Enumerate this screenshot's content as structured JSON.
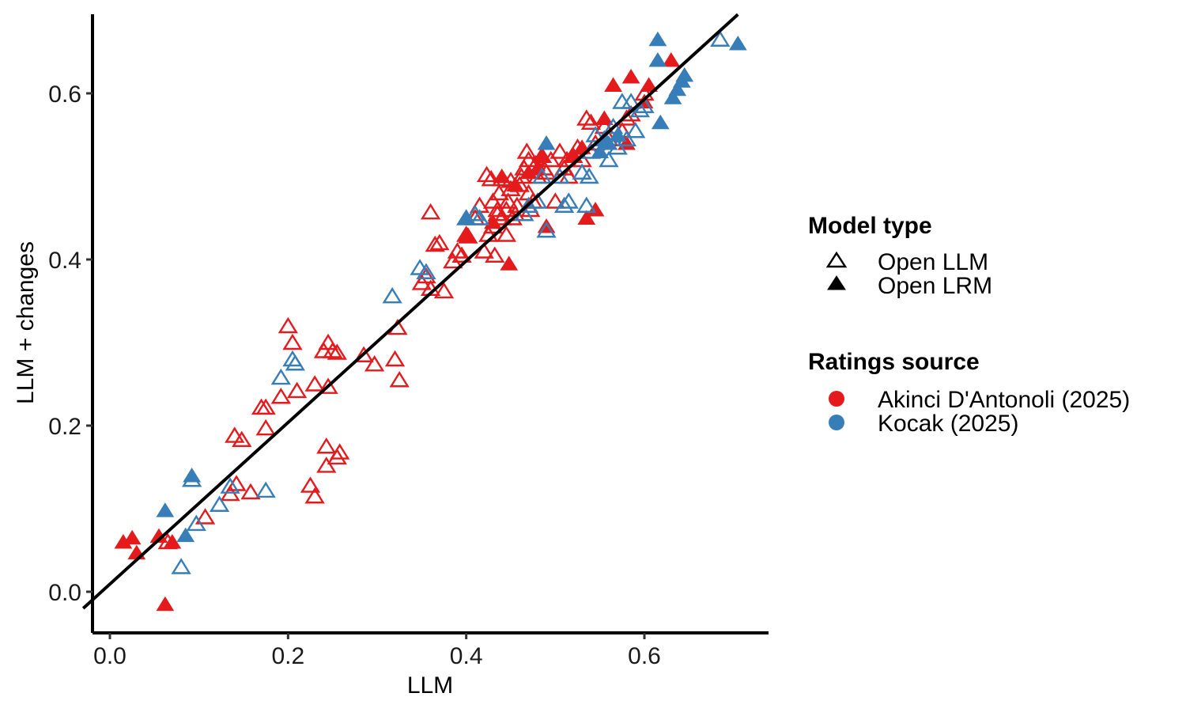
{
  "chart_data": {
    "type": "scatter",
    "xlabel": "LLM",
    "ylabel": "LLM + changes",
    "xlim": [
      -0.03,
      0.735
    ],
    "ylim": [
      -0.05,
      0.695
    ],
    "x_ticks": [
      0.0,
      0.2,
      0.4,
      0.6
    ],
    "y_ticks": [
      0.0,
      0.2,
      0.4,
      0.6
    ],
    "x_tick_labels": [
      "0.0",
      "0.2",
      "0.4",
      "0.6"
    ],
    "y_tick_labels": [
      "0.0",
      "0.2",
      "0.4",
      "0.6"
    ],
    "grid": false,
    "legend_position": "right",
    "reference_line": {
      "x": [
        -0.03,
        0.705
      ],
      "y": [
        -0.02,
        0.695
      ]
    },
    "colors": {
      "Akinci D'Antonoli (2025)": "#e41a1c",
      "Kocak (2025)": "#377eb8"
    },
    "legend": {
      "shape_title": "Model type",
      "shape_entries": [
        {
          "label": "Open LLM",
          "marker": "open-triangle"
        },
        {
          "label": "Open LRM",
          "marker": "filled-triangle"
        }
      ],
      "color_title": "Ratings source",
      "color_entries": [
        {
          "label": "Akinci D'Antonoli (2025)",
          "color": "#e41a1c"
        },
        {
          "label": "Kocak (2025)",
          "color": "#377eb8"
        }
      ]
    },
    "series": [
      {
        "source": "Akinci D'Antonoli (2025)",
        "model_type": "Open LLM",
        "points": [
          [
            0.065,
            0.06
          ],
          [
            0.107,
            0.09
          ],
          [
            0.14,
            0.188
          ],
          [
            0.148,
            0.183
          ],
          [
            0.142,
            0.13
          ],
          [
            0.135,
            0.118
          ],
          [
            0.158,
            0.12
          ],
          [
            0.17,
            0.222
          ],
          [
            0.175,
            0.222
          ],
          [
            0.175,
            0.197
          ],
          [
            0.192,
            0.235
          ],
          [
            0.2,
            0.32
          ],
          [
            0.205,
            0.3
          ],
          [
            0.21,
            0.242
          ],
          [
            0.23,
            0.25
          ],
          [
            0.24,
            0.29
          ],
          [
            0.245,
            0.3
          ],
          [
            0.25,
            0.29
          ],
          [
            0.255,
            0.288
          ],
          [
            0.245,
            0.247
          ],
          [
            0.225,
            0.128
          ],
          [
            0.23,
            0.115
          ],
          [
            0.243,
            0.175
          ],
          [
            0.243,
            0.152
          ],
          [
            0.258,
            0.168
          ],
          [
            0.255,
            0.162
          ],
          [
            0.285,
            0.285
          ],
          [
            0.297,
            0.274
          ],
          [
            0.32,
            0.28
          ],
          [
            0.323,
            0.318
          ],
          [
            0.325,
            0.255
          ],
          [
            0.35,
            0.372
          ],
          [
            0.355,
            0.38
          ],
          [
            0.36,
            0.365
          ],
          [
            0.36,
            0.457
          ],
          [
            0.365,
            0.418
          ],
          [
            0.37,
            0.42
          ],
          [
            0.375,
            0.362
          ],
          [
            0.385,
            0.398
          ],
          [
            0.39,
            0.41
          ],
          [
            0.395,
            0.405
          ],
          [
            0.4,
            0.43
          ],
          [
            0.402,
            0.428
          ],
          [
            0.41,
            0.45
          ],
          [
            0.415,
            0.465
          ],
          [
            0.42,
            0.41
          ],
          [
            0.423,
            0.502
          ],
          [
            0.425,
            0.43
          ],
          [
            0.428,
            0.497
          ],
          [
            0.43,
            0.47
          ],
          [
            0.43,
            0.44
          ],
          [
            0.432,
            0.405
          ],
          [
            0.435,
            0.455
          ],
          [
            0.435,
            0.46
          ],
          [
            0.437,
            0.48
          ],
          [
            0.44,
            0.45
          ],
          [
            0.44,
            0.497
          ],
          [
            0.445,
            0.43
          ],
          [
            0.445,
            0.46
          ],
          [
            0.447,
            0.47
          ],
          [
            0.45,
            0.485
          ],
          [
            0.45,
            0.495
          ],
          [
            0.452,
            0.45
          ],
          [
            0.455,
            0.455
          ],
          [
            0.457,
            0.465
          ],
          [
            0.46,
            0.49
          ],
          [
            0.462,
            0.5
          ],
          [
            0.465,
            0.51
          ],
          [
            0.468,
            0.53
          ],
          [
            0.47,
            0.52
          ],
          [
            0.47,
            0.48
          ],
          [
            0.472,
            0.46
          ],
          [
            0.475,
            0.47
          ],
          [
            0.478,
            0.515
          ],
          [
            0.48,
            0.5
          ],
          [
            0.485,
            0.525
          ],
          [
            0.487,
            0.51
          ],
          [
            0.49,
            0.505
          ],
          [
            0.495,
            0.52
          ],
          [
            0.5,
            0.47
          ],
          [
            0.505,
            0.53
          ],
          [
            0.51,
            0.51
          ],
          [
            0.513,
            0.52
          ],
          [
            0.515,
            0.5
          ],
          [
            0.52,
            0.525
          ],
          [
            0.525,
            0.535
          ],
          [
            0.53,
            0.52
          ],
          [
            0.535,
            0.57
          ],
          [
            0.54,
            0.565
          ],
          [
            0.545,
            0.54
          ],
          [
            0.555,
            0.56
          ],
          [
            0.56,
            0.545
          ],
          [
            0.575,
            0.555
          ],
          [
            0.58,
            0.57
          ],
          [
            0.585,
            0.575
          ],
          [
            0.6,
            0.6
          ]
        ]
      },
      {
        "source": "Akinci D'Antonoli (2025)",
        "model_type": "Open LRM",
        "points": [
          [
            0.015,
            0.06
          ],
          [
            0.025,
            0.065
          ],
          [
            0.03,
            0.047
          ],
          [
            0.055,
            0.067
          ],
          [
            0.062,
            -0.015
          ],
          [
            0.07,
            0.06
          ],
          [
            0.4,
            0.43
          ],
          [
            0.43,
            0.445
          ],
          [
            0.44,
            0.5
          ],
          [
            0.448,
            0.395
          ],
          [
            0.455,
            0.49
          ],
          [
            0.47,
            0.505
          ],
          [
            0.48,
            0.51
          ],
          [
            0.485,
            0.525
          ],
          [
            0.49,
            0.44
          ],
          [
            0.52,
            0.525
          ],
          [
            0.53,
            0.535
          ],
          [
            0.535,
            0.45
          ],
          [
            0.545,
            0.46
          ],
          [
            0.555,
            0.57
          ],
          [
            0.565,
            0.61
          ],
          [
            0.58,
            0.54
          ],
          [
            0.585,
            0.62
          ],
          [
            0.6,
            0.59
          ],
          [
            0.605,
            0.61
          ],
          [
            0.63,
            0.64
          ]
        ]
      },
      {
        "source": "Kocak (2025)",
        "model_type": "Open LLM",
        "points": [
          [
            0.08,
            0.03
          ],
          [
            0.092,
            0.135
          ],
          [
            0.097,
            0.082
          ],
          [
            0.123,
            0.105
          ],
          [
            0.135,
            0.127
          ],
          [
            0.175,
            0.122
          ],
          [
            0.192,
            0.258
          ],
          [
            0.205,
            0.28
          ],
          [
            0.208,
            0.275
          ],
          [
            0.317,
            0.356
          ],
          [
            0.348,
            0.39
          ],
          [
            0.355,
            0.385
          ],
          [
            0.4,
            0.45
          ],
          [
            0.41,
            0.455
          ],
          [
            0.415,
            0.45
          ],
          [
            0.465,
            0.455
          ],
          [
            0.47,
            0.465
          ],
          [
            0.48,
            0.47
          ],
          [
            0.485,
            0.5
          ],
          [
            0.49,
            0.435
          ],
          [
            0.505,
            0.5
          ],
          [
            0.51,
            0.465
          ],
          [
            0.515,
            0.47
          ],
          [
            0.53,
            0.505
          ],
          [
            0.535,
            0.465
          ],
          [
            0.538,
            0.5
          ],
          [
            0.54,
            0.53
          ],
          [
            0.545,
            0.55
          ],
          [
            0.555,
            0.545
          ],
          [
            0.56,
            0.52
          ],
          [
            0.565,
            0.56
          ],
          [
            0.57,
            0.535
          ],
          [
            0.575,
            0.59
          ],
          [
            0.58,
            0.545
          ],
          [
            0.585,
            0.59
          ],
          [
            0.59,
            0.555
          ],
          [
            0.595,
            0.58
          ],
          [
            0.6,
            0.585
          ],
          [
            0.685,
            0.665
          ]
        ]
      },
      {
        "source": "Kocak (2025)",
        "model_type": "Open LRM",
        "points": [
          [
            0.062,
            0.098
          ],
          [
            0.085,
            0.068
          ],
          [
            0.092,
            0.14
          ],
          [
            0.4,
            0.45
          ],
          [
            0.49,
            0.54
          ],
          [
            0.55,
            0.53
          ],
          [
            0.555,
            0.545
          ],
          [
            0.56,
            0.54
          ],
          [
            0.57,
            0.55
          ],
          [
            0.615,
            0.665
          ],
          [
            0.615,
            0.64
          ],
          [
            0.618,
            0.565
          ],
          [
            0.632,
            0.595
          ],
          [
            0.637,
            0.605
          ],
          [
            0.642,
            0.615
          ],
          [
            0.645,
            0.622
          ],
          [
            0.705,
            0.66
          ]
        ]
      }
    ]
  }
}
